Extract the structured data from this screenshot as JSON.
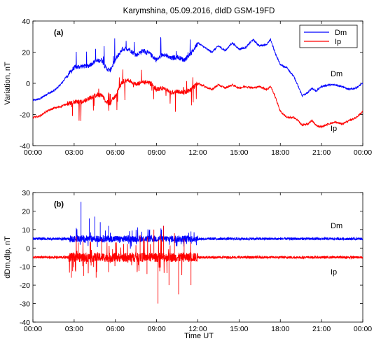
{
  "title": "Karymshina, 05.09.2016, dIdD GSM-19FD",
  "xlabel": "Time UT",
  "colors": {
    "Dm": "#0000ff",
    "Ip": "#ff0000"
  },
  "chart_data": [
    {
      "type": "line",
      "panel_label": "(a)",
      "ylabel": "Variation, nT",
      "xlim": [
        0,
        24
      ],
      "ylim": [
        -40,
        40
      ],
      "x_tick_labels": [
        "00:00",
        "03:00",
        "06:00",
        "09:00",
        "12:00",
        "15:00",
        "18:00",
        "21:00",
        "00:00"
      ],
      "y_tick_labels": [
        "-40",
        "-20",
        "0",
        "20",
        "40"
      ],
      "legend": {
        "position": "top-right",
        "entries": [
          "Dm",
          "Ip"
        ]
      },
      "curve_labels": [
        "Dm",
        "Ip"
      ],
      "series": [
        {
          "name": "Dm",
          "x": [
            0,
            0.5,
            1,
            1.5,
            2,
            2.5,
            3,
            3.5,
            4,
            4.5,
            5,
            5.3,
            5.6,
            6,
            6.5,
            7,
            7.5,
            8,
            8.5,
            9,
            9.5,
            10,
            10.5,
            11,
            11.5,
            12,
            12.5,
            13,
            13.5,
            14,
            14.5,
            15,
            15.5,
            16,
            16.5,
            17,
            17.3,
            17.6,
            18,
            18.5,
            19,
            19.3,
            19.6,
            20,
            20.3,
            20.6,
            21,
            21.5,
            22,
            22.5,
            23,
            23.5,
            24
          ],
          "y": [
            -11,
            -10,
            -7,
            -5,
            -1,
            5,
            10,
            11,
            11,
            14,
            15,
            10,
            8,
            15,
            22,
            22,
            18,
            21,
            19,
            15,
            19,
            16,
            17,
            15,
            19,
            26,
            23,
            20,
            24,
            21,
            26,
            22,
            23,
            28,
            24,
            25,
            28,
            20,
            12,
            10,
            4,
            -2,
            -8,
            -6,
            -3,
            -5,
            -2,
            -1,
            -1,
            -2,
            -4,
            -3,
            0
          ]
        },
        {
          "name": "Ip",
          "x": [
            0,
            0.5,
            1,
            1.5,
            2,
            2.5,
            3,
            3.5,
            4,
            4.5,
            5,
            5.3,
            5.6,
            6,
            6.5,
            7,
            7.5,
            8,
            8.5,
            9,
            9.5,
            10,
            10.5,
            11,
            11.5,
            12,
            12.5,
            13,
            13.5,
            14,
            14.5,
            15,
            15.5,
            16,
            16.5,
            17,
            17.3,
            17.6,
            18,
            18.5,
            19,
            19.3,
            19.6,
            20,
            20.3,
            20.6,
            21,
            21.5,
            22,
            22.5,
            23,
            23.5,
            24
          ],
          "y": [
            -22,
            -21,
            -18,
            -16,
            -15,
            -13,
            -12,
            -12,
            -10,
            -8,
            -7,
            -12,
            -13,
            -8,
            1,
            2,
            -1,
            1,
            0,
            -4,
            -3,
            -6,
            -5,
            -6,
            -4,
            0,
            -2,
            -4,
            -1,
            -3,
            -1,
            -3,
            -2,
            -3,
            -2,
            -4,
            -2,
            -8,
            -18,
            -22,
            -22,
            -24,
            -27,
            -26,
            -24,
            -27,
            -28,
            -26,
            -25,
            -26,
            -24,
            -22,
            -18
          ]
        }
      ]
    },
    {
      "type": "line",
      "panel_label": "(b)",
      "ylabel": "dDm,dIp, nT",
      "xlim": [
        0,
        24
      ],
      "ylim": [
        -40,
        30
      ],
      "x_tick_labels": [
        "00:00",
        "03:00",
        "06:00",
        "09:00",
        "12:00",
        "15:00",
        "18:00",
        "21:00",
        "00:00"
      ],
      "y_tick_labels": [
        "-40",
        "-30",
        "-20",
        "-10",
        "0",
        "10",
        "20",
        "30"
      ],
      "curve_labels": [
        "Dm",
        "Ip"
      ],
      "series": [
        {
          "name": "Dm",
          "baseline": 5,
          "noise_quiet": 0.7,
          "noise_active": 1.8,
          "active_window": [
            2.6,
            12
          ],
          "spikes": [
            {
              "x": 3.5,
              "y": 25
            },
            {
              "x": 4.1,
              "y": 16
            },
            {
              "x": 4.5,
              "y": 17
            },
            {
              "x": 4.9,
              "y": 14
            },
            {
              "x": 5.5,
              "y": 12
            },
            {
              "x": 8.5,
              "y": 10
            },
            {
              "x": 9.5,
              "y": 12
            },
            {
              "x": 11.5,
              "y": 9
            }
          ]
        },
        {
          "name": "Ip",
          "baseline": -5,
          "noise_quiet": 0.7,
          "noise_active": 2.5,
          "active_window": [
            2.6,
            12
          ],
          "spikes": [
            {
              "x": 2.8,
              "y": -16
            },
            {
              "x": 3.3,
              "y": 3
            },
            {
              "x": 3.7,
              "y": -15
            },
            {
              "x": 4.2,
              "y": 3
            },
            {
              "x": 4.6,
              "y": -16
            },
            {
              "x": 5.0,
              "y": 5
            },
            {
              "x": 5.5,
              "y": -13
            },
            {
              "x": 6.0,
              "y": 3
            },
            {
              "x": 7.8,
              "y": 7
            },
            {
              "x": 8.3,
              "y": -14
            },
            {
              "x": 8.8,
              "y": 10
            },
            {
              "x": 9.1,
              "y": -30
            },
            {
              "x": 9.5,
              "y": 12
            },
            {
              "x": 9.9,
              "y": -20
            },
            {
              "x": 10.3,
              "y": 8
            },
            {
              "x": 10.6,
              "y": -25
            },
            {
              "x": 11.0,
              "y": 5
            },
            {
              "x": 11.5,
              "y": -20
            }
          ]
        }
      ]
    }
  ]
}
